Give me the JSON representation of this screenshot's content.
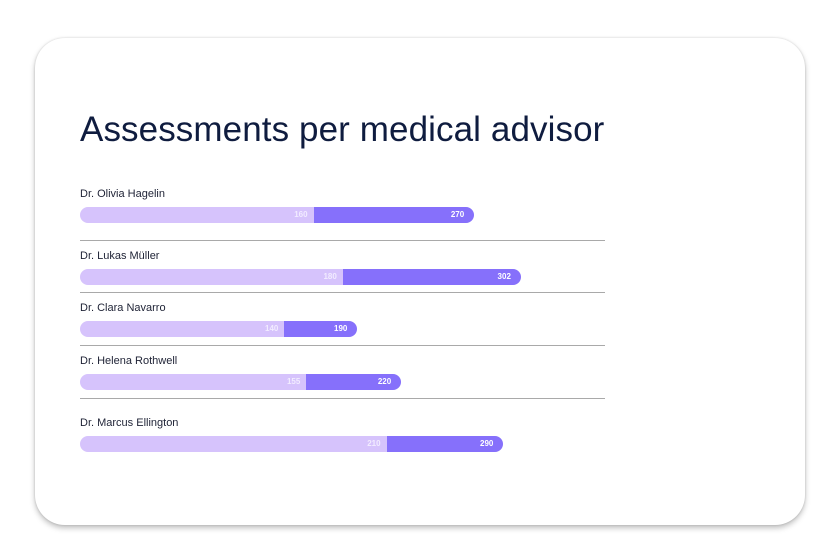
{
  "chart_data": {
    "type": "bar",
    "orientation": "horizontal",
    "stacked": true,
    "title": "Assessments per medical advisor",
    "categories": [
      "Dr. Olivia Hagelin",
      "Dr. Lukas Müller",
      "Dr. Clara Navarro",
      "Dr. Helena Rothwell",
      "Dr. Marcus Ellington"
    ],
    "series": [
      {
        "values": [
          160,
          180,
          140,
          155,
          210
        ],
        "color": "#d6c3fc"
      },
      {
        "values": [
          270,
          302,
          190,
          220,
          290
        ],
        "color": "#8670fb"
      }
    ],
    "grid": false
  }
}
